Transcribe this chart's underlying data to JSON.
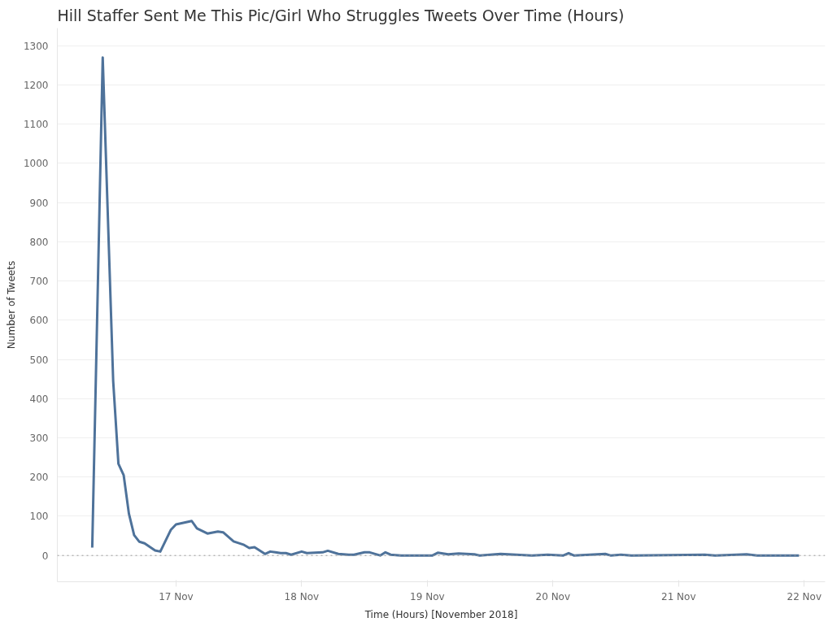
{
  "chart_data": {
    "type": "line",
    "title": "Hill Staffer Sent Me This Pic/Girl Who Struggles Tweets Over Time (Hours)",
    "xlabel": "Time (Hours) [November 2018]",
    "ylabel": "Number of Tweets",
    "x": [
      "2018-11-16T08:00",
      "2018-11-16T10:00",
      "2018-11-16T12:00",
      "2018-11-16T13:00",
      "2018-11-16T14:00",
      "2018-11-16T15:00",
      "2018-11-16T16:00",
      "2018-11-16T17:00",
      "2018-11-16T18:00",
      "2018-11-16T20:00",
      "2018-11-16T21:00",
      "2018-11-16T23:00",
      "2018-11-17T00:00",
      "2018-11-17T03:00",
      "2018-11-17T04:00",
      "2018-11-17T06:00",
      "2018-11-17T08:00",
      "2018-11-17T09:00",
      "2018-11-17T11:00",
      "2018-11-17T13:00",
      "2018-11-17T14:00",
      "2018-11-17T15:00",
      "2018-11-17T17:00",
      "2018-11-17T18:00",
      "2018-11-17T19:00",
      "2018-11-17T20:00",
      "2018-11-17T21:00",
      "2018-11-17T22:00",
      "2018-11-18T00:00",
      "2018-11-18T01:00",
      "2018-11-18T04:00",
      "2018-11-18T05:00",
      "2018-11-18T07:00",
      "2018-11-18T09:00",
      "2018-11-18T10:00",
      "2018-11-18T12:00",
      "2018-11-18T13:00",
      "2018-11-18T15:00",
      "2018-11-18T16:00",
      "2018-11-18T17:00",
      "2018-11-18T19:00",
      "2018-11-19T01:00",
      "2018-11-19T02:00",
      "2018-11-19T04:00",
      "2018-11-19T06:00",
      "2018-11-19T09:00",
      "2018-11-19T10:00",
      "2018-11-19T14:00",
      "2018-11-19T20:00",
      "2018-11-19T23:00",
      "2018-11-20T02:00",
      "2018-11-20T03:00",
      "2018-11-20T04:00",
      "2018-11-20T10:00",
      "2018-11-20T11:00",
      "2018-11-20T13:00",
      "2018-11-20T15:00",
      "2018-11-21T05:00",
      "2018-11-21T07:00",
      "2018-11-21T13:00",
      "2018-11-21T15:00",
      "2018-11-21T23:00"
    ],
    "series": [
      {
        "color": "#4e729a",
        "values": [
          20,
          1270,
          445,
          234,
          205,
          107,
          52,
          35,
          31,
          13,
          10,
          65,
          79,
          88,
          69,
          56,
          61,
          59,
          36,
          27,
          19,
          21,
          4,
          10,
          8,
          6,
          6,
          2,
          10,
          6,
          8,
          12,
          4,
          2,
          2,
          8,
          8,
          0,
          8,
          2,
          0,
          0,
          7,
          3,
          5,
          3,
          0,
          4,
          0,
          2,
          0,
          6,
          0,
          4,
          0,
          2,
          0,
          2,
          0,
          3,
          0,
          0
        ]
      }
    ],
    "xlim": [
      "2018-11-16T01:20",
      "2018-11-22T04:00"
    ],
    "xticks": [
      {
        "value": "2018-11-17",
        "label": "17 Nov"
      },
      {
        "value": "2018-11-18",
        "label": "18 Nov"
      },
      {
        "value": "2018-11-19",
        "label": "19 Nov"
      },
      {
        "value": "2018-11-20",
        "label": "20 Nov"
      },
      {
        "value": "2018-11-21",
        "label": "21 Nov"
      },
      {
        "value": "2018-11-22",
        "label": "22 Nov"
      }
    ],
    "ylim": [
      -67,
      1345
    ],
    "yticks": [
      0,
      100,
      200,
      300,
      400,
      500,
      600,
      700,
      800,
      900,
      1000,
      1100,
      1200,
      1300
    ],
    "grid": "y",
    "marker": "none",
    "line_style": "solid",
    "ref_lines": [
      {
        "axis": "y",
        "value": 0,
        "label": null,
        "color": "#999999",
        "line_style": "dotted"
      }
    ]
  }
}
